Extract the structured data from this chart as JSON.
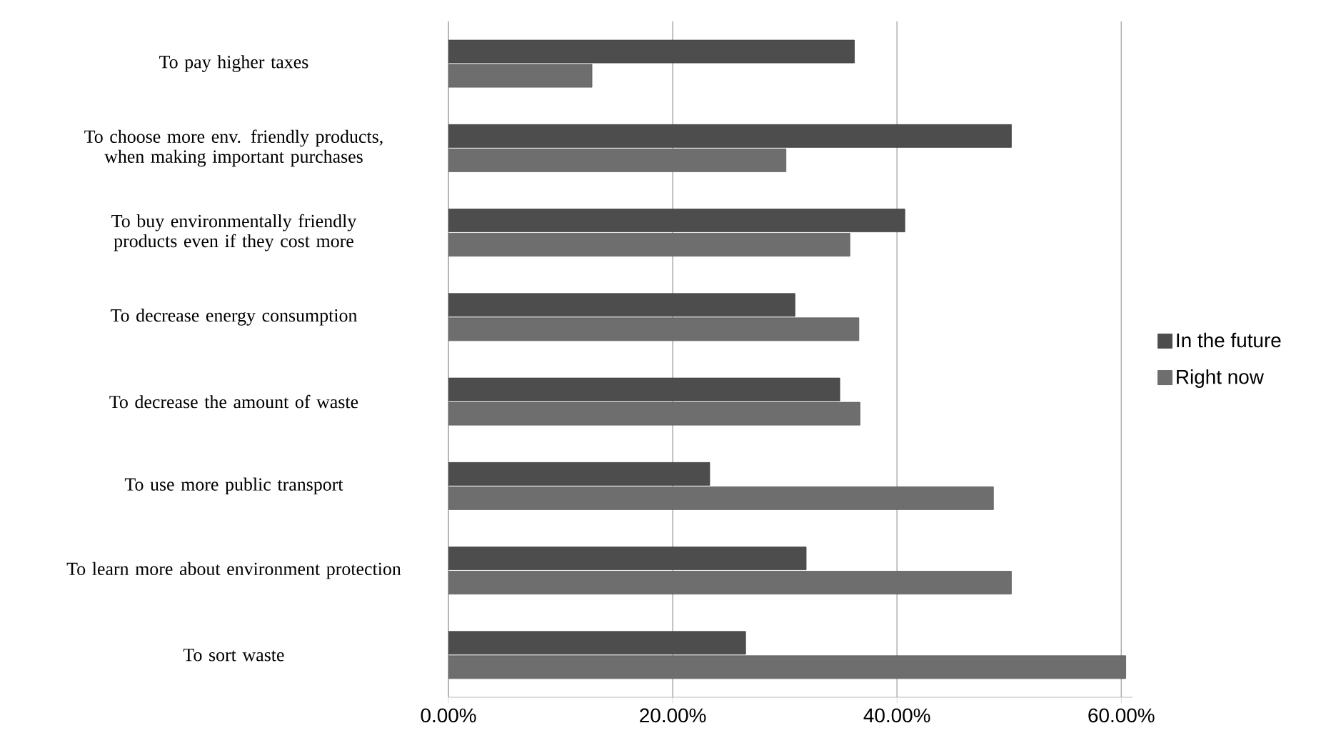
{
  "chart_data": {
    "type": "bar",
    "orientation": "horizontal",
    "categories": [
      "To pay higher taxes",
      "To choose more env. friendly products, when making important purchases",
      "To buy environmentally friendly products even if they cost more",
      "To decrease energy consumption",
      "To decrease the amount of waste",
      "To use more public transport",
      "To learn more about environment protection",
      "To sort waste"
    ],
    "series": [
      {
        "name": "In the future",
        "color": "#4d4d4d",
        "values": [
          36.2,
          50.2,
          40.7,
          30.9,
          34.9,
          23.3,
          31.9,
          26.5
        ]
      },
      {
        "name": "Right now",
        "color": "#6e6e6e",
        "values": [
          12.8,
          30.1,
          35.8,
          36.6,
          36.7,
          48.6,
          50.2,
          60.4
        ]
      }
    ],
    "xlim": [
      0,
      61
    ],
    "xticks": [
      {
        "value": 0,
        "label": "0.00%"
      },
      {
        "value": 20,
        "label": "20.00%"
      },
      {
        "value": 40,
        "label": "40.00%"
      },
      {
        "value": 60,
        "label": "60.00%"
      }
    ],
    "grid": "x",
    "legend": "right"
  }
}
